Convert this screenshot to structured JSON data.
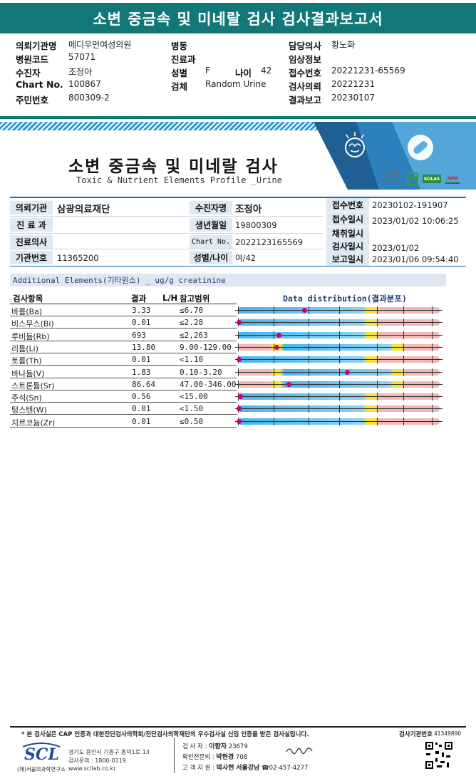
{
  "top": {
    "title": "소변 중금속 및 미네랄 검사 검사결과보고서",
    "rows": [
      [
        {
          "l": "의뢰기관명",
          "v": "메디우먼여성의원"
        },
        {
          "l": "병동",
          "v": ""
        },
        {
          "l": "담당의사",
          "v": "황노화"
        }
      ],
      [
        {
          "l": "병원코드",
          "v": "57071"
        },
        {
          "l": "진료과",
          "v": ""
        },
        {
          "l": "임상정보",
          "v": ""
        }
      ],
      [
        {
          "l": "수진자",
          "v": "조정아"
        },
        {
          "l": "성별",
          "v": "F"
        },
        {
          "l": "접수번호",
          "v": "20221231-65569"
        }
      ],
      [
        {
          "l": "Chart No.",
          "v": "100867"
        },
        {
          "l": "검체",
          "v": "Random Urine"
        },
        {
          "l": "검사의뢰",
          "v": "20221231"
        }
      ],
      [
        {
          "l": "주민번호",
          "v": "800309-2"
        },
        {
          "l": "",
          "v": ""
        },
        {
          "l": "결과보고",
          "v": "20230107"
        }
      ]
    ],
    "age_label": "나이",
    "age_value": "42"
  },
  "report": {
    "title": "소변 중금속 및 미네랄 검사",
    "subtitle": "Toxic & Nutrient Elements Profile _Urine",
    "cert": {
      "cap": "CAP",
      "cap_sub": "ACCREDITED",
      "lm": "LM",
      "kola": "KOLAS",
      "ama": "AMA"
    }
  },
  "patient": {
    "inst_label": "의뢰기관",
    "inst_value": "삼광의료재단",
    "dept_label": "진 료 과",
    "dept_value": "",
    "doctor_label": "진료의사",
    "doctor_value": "",
    "code_label": "기관번호",
    "code_value": "11365200",
    "name_label": "수진자명",
    "name_value": "조정아",
    "birth_label": "생년월일",
    "birth_value": "19800309",
    "chart_label": "Chart No.",
    "chart_value": "2022123165569",
    "sexage_label": "성별/나이",
    "sexage_value": "여/42",
    "recv_no_label": "접수번호",
    "recv_no_value": "20230102-191907",
    "recv_date_label": "접수일시",
    "recv_date_value": "2023/01/02  10:06:25",
    "collect_label": "채취일시",
    "collect_value": "",
    "test_label": "검사일시",
    "test_value": "2023/01/02",
    "report_label": "보고일시",
    "report_value": "2023/01/06  09:54:40"
  },
  "results": {
    "section_title": "Additional Elements(기타원소) _ ug/g creatinine",
    "col_item": "검사항목",
    "col_result": "결과",
    "col_lh": "L/H",
    "col_ref": "참고범위",
    "col_dist": "Data distribution(결과분포)",
    "rows": [
      {
        "name": "바륨(Ba)",
        "result": "3.33",
        "ref": "≤6.70",
        "type": "upper",
        "pos": 0.33
      },
      {
        "name": "비스무스(Bi)",
        "result": "0.01",
        "ref": "≤2.28",
        "type": "upper",
        "pos": 0.0
      },
      {
        "name": "루비듐(Rb)",
        "result": "693",
        "ref": "≤2,263",
        "type": "upper",
        "pos": 0.2
      },
      {
        "name": "리튬(Li)",
        "result": "13.80",
        "ref": "9.00-129.00",
        "type": "range",
        "pos": 0.19
      },
      {
        "name": "토륨(Th)",
        "result": "0.01",
        "ref": "<1.10",
        "type": "upper",
        "pos": 0.0
      },
      {
        "name": "바나듐(V)",
        "result": "1.83",
        "ref": "0.10-3.20",
        "type": "range",
        "pos": 0.54
      },
      {
        "name": "스트론튬(Sr)",
        "result": "86.64",
        "ref": "47.00-346.00",
        "type": "range",
        "pos": 0.25
      },
      {
        "name": "주석(Sn)",
        "result": "0.56",
        "ref": "<15.00",
        "type": "upper",
        "pos": 0.01
      },
      {
        "name": "텅스텐(W)",
        "result": "0.01",
        "ref": "<1.50",
        "type": "upper",
        "pos": 0.0
      },
      {
        "name": "지르코늄(Zr)",
        "result": "0.01",
        "ref": "≤0.50",
        "type": "upper",
        "pos": 0.0
      }
    ]
  },
  "footer": {
    "note": "* 본 검사실은 CAP 인증과 대한진단검사의학회/진단검사의학재단의 우수검사실 신임 인증을 받은 검사실입니다.",
    "lab_no_label": "검사기관번호",
    "lab_no": "41349890",
    "logo": "SCL",
    "org": "(재)서울의과학연구소",
    "addr1": "경기도 용인시 기흥구 흥덕1로 13",
    "addr2": "검사문의 : 1800-0119",
    "addr3": "www.scllab.co.kr",
    "sig1_label": "검  사  자 :",
    "sig1_name": "이향자",
    "sig1_no": "23679",
    "sig2_label": "확인전문의 :",
    "sig2_name": "박현경",
    "sig2_no": "708",
    "sig3_label": "고 객 지 원 :",
    "sig3_name": "박사현",
    "sig3_region": "서울강남",
    "sig3_phone": "☎02-457-4277"
  }
}
